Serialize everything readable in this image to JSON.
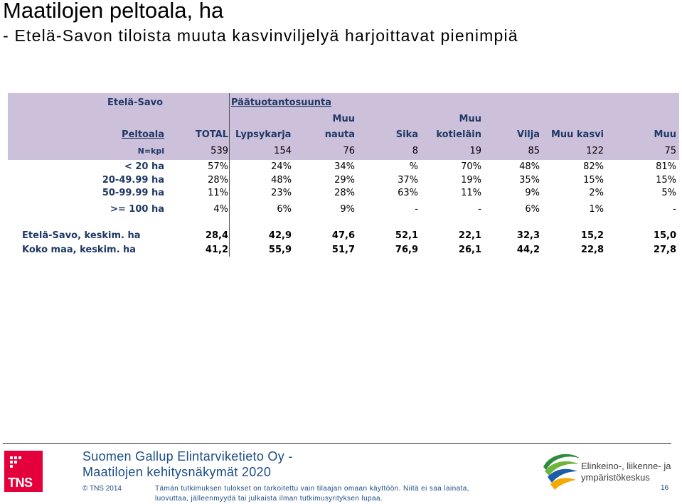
{
  "title": "Maatilojen peltoala, ha",
  "subtitle": "- Etelä-Savon tiloista muuta kasvinviljelyä harjoittavat pienimpiä",
  "table": {
    "region_label": "Etelä-Savo",
    "group_label": "Päätuotantosuunta",
    "row_header": "Peltoala",
    "columns": [
      {
        "top": "",
        "label": "TOTAL"
      },
      {
        "top": "",
        "label": "Lypsykarja"
      },
      {
        "top": "Muu",
        "label": "nauta"
      },
      {
        "top": "",
        "label": "Sika"
      },
      {
        "top": "Muu",
        "label": "kotieläin"
      },
      {
        "top": "",
        "label": "Vilja"
      },
      {
        "top": "",
        "label": "Muu kasvi"
      },
      {
        "top": "",
        "label": "Muu"
      }
    ],
    "n_row": {
      "label": "N=kpl",
      "values": [
        "539",
        "154",
        "76",
        "8",
        "19",
        "85",
        "122",
        "75"
      ]
    },
    "rows": [
      {
        "label": "< 20 ha",
        "values": [
          "57%",
          "24%",
          "34%",
          "%",
          "70%",
          "48%",
          "82%",
          "81%"
        ]
      },
      {
        "label": "20-49.99 ha",
        "values": [
          "28%",
          "48%",
          "29%",
          "37%",
          "19%",
          "35%",
          "15%",
          "15%"
        ]
      },
      {
        "label": "50-99.99 ha",
        "values": [
          "11%",
          "23%",
          "28%",
          "63%",
          "11%",
          "9%",
          "2%",
          "5%"
        ]
      },
      {
        "label": ">= 100 ha",
        "values": [
          "4%",
          "6%",
          "9%",
          "-",
          "-",
          "6%",
          "1%",
          "-"
        ]
      }
    ],
    "avg_rows": [
      {
        "label": "Etelä-Savo, keskim. ha",
        "values": [
          "28,4",
          "42,9",
          "47,6",
          "52,1",
          "22,1",
          "32,3",
          "15,2",
          "15,0"
        ]
      },
      {
        "label": "Koko maa, keskim. ha",
        "values": [
          "41,2",
          "55,9",
          "51,7",
          "76,9",
          "26,1",
          "44,2",
          "22,8",
          "27,8"
        ]
      }
    ]
  },
  "footer": {
    "company_line1": "Suomen Gallup Elintarviketieto Oy -",
    "company_line2": "Maatilojen kehitysnäkymät 2020",
    "copyright": "© TNS 2014",
    "disclaimer_line1": "Tämän tutkimuksen tulokset on tarkoitettu vain tilaajan omaan käyttöön. Niitä ei saa lainata,",
    "disclaimer_line2": "luovuttaa, jälleenmyydä tai julkaista ilman tutkimusyrityksen lupaa.",
    "tns_logo": "TNS",
    "ely_line1": "Elinkeino-, liikenne- ja",
    "ely_line2": "ympäristökeskus",
    "page_number": "16"
  },
  "colors": {
    "header_bg": "#ccc0da",
    "text_navy": "#1f3864",
    "footer_blue": "#1b4c86",
    "tns_red": "#e4003a"
  }
}
